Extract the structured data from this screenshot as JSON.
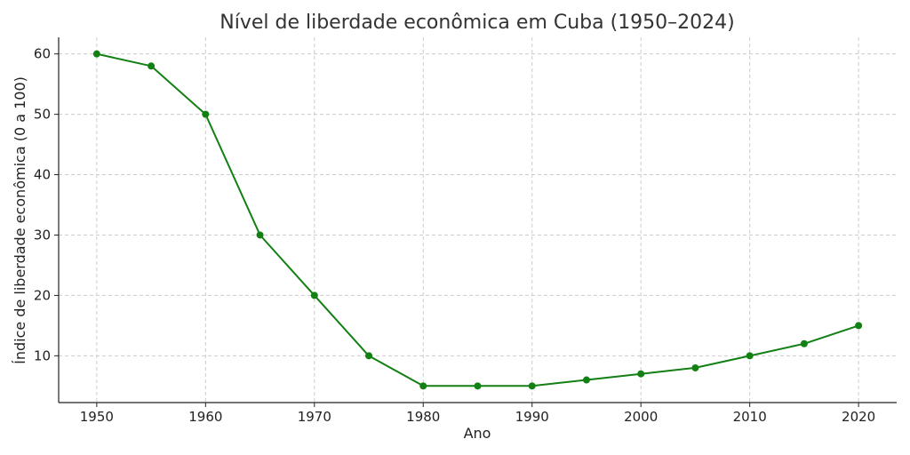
{
  "chart_data": {
    "type": "line",
    "title": "Nível de liberdade econômica em Cuba (1950–2024)",
    "xlabel": "Ano",
    "ylabel": "Índice de liberdade econômica (0 a 100)",
    "xlim": [
      1946.5,
      2023.5
    ],
    "ylim": [
      2.25,
      62.75
    ],
    "xticks": [
      1950,
      1960,
      1970,
      1980,
      1990,
      2000,
      2010,
      2020
    ],
    "yticks": [
      10,
      20,
      30,
      40,
      50,
      60
    ],
    "grid": true,
    "colors": {
      "line": "#138013"
    },
    "series": [
      {
        "x": [
          1950,
          1955,
          1960,
          1965,
          1970,
          1975,
          1980,
          1985,
          1990,
          1995,
          2000,
          2005,
          2010,
          2015,
          2020
        ],
        "values": [
          60,
          58,
          50,
          30,
          20,
          10,
          5,
          5,
          5,
          6,
          7,
          8,
          10,
          12,
          15
        ]
      }
    ]
  }
}
